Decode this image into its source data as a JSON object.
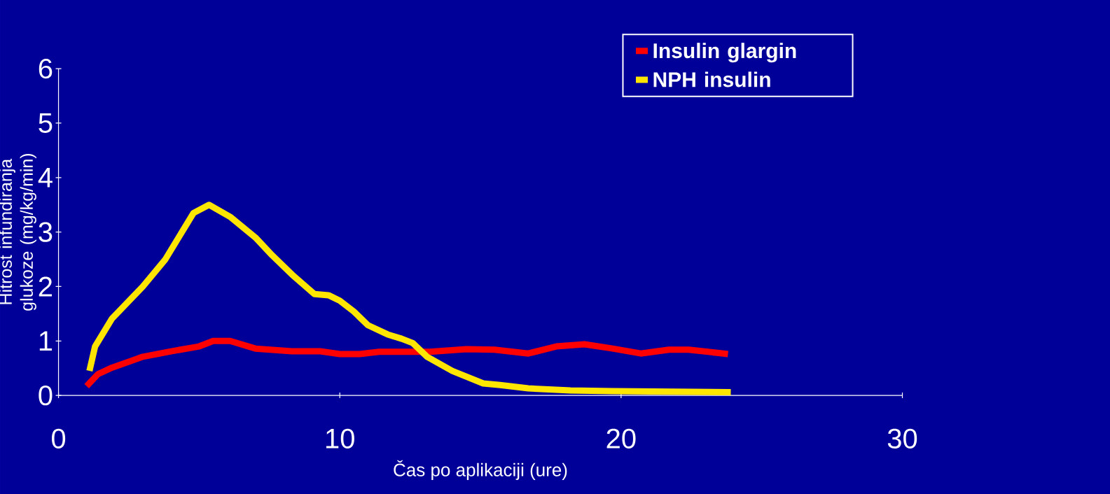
{
  "chart_data": {
    "type": "line",
    "xlabel": "Čas po aplikaciji (ure)",
    "ylabel": "Hitrost infundiranja glukoze (mg/kg/min)",
    "xlim": [
      0,
      30
    ],
    "xticks": [
      0,
      10,
      20,
      30
    ],
    "ylim": [
      0,
      6
    ],
    "yticks": [
      0,
      1,
      2,
      3,
      4,
      5,
      6
    ],
    "legend": "top right",
    "line_style": "solid",
    "marker": "none",
    "series": [
      {
        "name": "Insulin glargin",
        "color": "#ff0000",
        "x": [
          1.0,
          1.4,
          1.9,
          3.0,
          4.0,
          5.0,
          5.5,
          6.1,
          7.0,
          8.3,
          9.3,
          10.0,
          10.7,
          11.4,
          13.2,
          14.5,
          15.5,
          16.7,
          17.7,
          18.7,
          19.7,
          20.7,
          21.7,
          22.4,
          23.8
        ],
        "values": [
          0.17,
          0.39,
          0.51,
          0.71,
          0.81,
          0.9,
          1.0,
          1.0,
          0.86,
          0.81,
          0.81,
          0.76,
          0.76,
          0.8,
          0.8,
          0.85,
          0.84,
          0.77,
          0.9,
          0.94,
          0.86,
          0.77,
          0.84,
          0.84,
          0.76
        ]
      },
      {
        "name": "NPH insulin",
        "color": "#ffe600",
        "x": [
          1.1,
          1.3,
          1.9,
          3.0,
          3.8,
          4.8,
          5.35,
          6.1,
          7.0,
          7.6,
          8.3,
          9.1,
          9.6,
          10.0,
          10.5,
          11.0,
          11.7,
          12.2,
          12.6,
          13.1,
          14.0,
          15.1,
          15.7,
          16.7,
          18.2,
          19.7,
          23.9
        ],
        "values": [
          0.45,
          0.9,
          1.41,
          2.0,
          2.5,
          3.35,
          3.5,
          3.28,
          2.9,
          2.57,
          2.22,
          1.86,
          1.84,
          1.74,
          1.54,
          1.29,
          1.12,
          1.04,
          0.96,
          0.71,
          0.45,
          0.22,
          0.19,
          0.13,
          0.09,
          0.08,
          0.06
        ]
      }
    ]
  }
}
